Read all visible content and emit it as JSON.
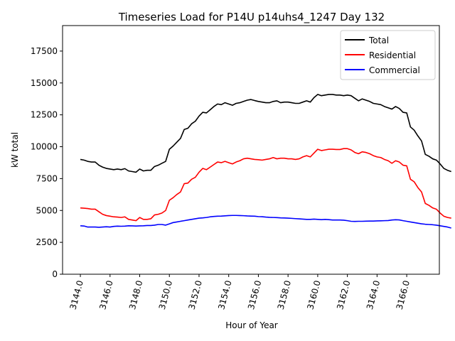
{
  "chart_data": {
    "type": "line",
    "title": "Timeseries Load for P14U p14uhs4_1247  Day 132",
    "xlabel": "Hour of Year",
    "ylabel": "kW total",
    "xlim": [
      3142.8,
      3168.2
    ],
    "ylim": [
      0,
      19500
    ],
    "xticks": [
      3144,
      3146,
      3148,
      3150,
      3152,
      3154,
      3156,
      3158,
      3160,
      3162,
      3164,
      3166
    ],
    "xtick_labels": [
      "3144.0",
      "3146.0",
      "3148.0",
      "3150.0",
      "3152.0",
      "3154.0",
      "3156.0",
      "3158.0",
      "3160.0",
      "3162.0",
      "3164.0",
      "3166.0"
    ],
    "yticks": [
      0,
      2500,
      5000,
      7500,
      10000,
      12500,
      15000,
      17500
    ],
    "ytick_labels": [
      "0",
      "2500",
      "5000",
      "7500",
      "10000",
      "12500",
      "15000",
      "17500"
    ],
    "x_start": 3144,
    "x_step": 0.25,
    "legend_position": "top-right",
    "series": [
      {
        "name": "Total",
        "color": "#000000",
        "values": [
          9000,
          8950,
          8850,
          8800,
          8800,
          8550,
          8400,
          8300,
          8250,
          8200,
          8250,
          8200,
          8280,
          8100,
          8050,
          8000,
          8250,
          8100,
          8150,
          8150,
          8450,
          8550,
          8700,
          8850,
          9800,
          10050,
          10350,
          10650,
          11350,
          11450,
          11800,
          12000,
          12400,
          12700,
          12650,
          12900,
          13150,
          13350,
          13300,
          13450,
          13350,
          13250,
          13400,
          13450,
          13550,
          13650,
          13700,
          13620,
          13550,
          13500,
          13450,
          13450,
          13550,
          13600,
          13450,
          13500,
          13500,
          13450,
          13400,
          13400,
          13500,
          13600,
          13500,
          13850,
          14100,
          14000,
          14050,
          14100,
          14100,
          14050,
          14050,
          14000,
          14050,
          14000,
          13800,
          13600,
          13750,
          13650,
          13550,
          13400,
          13350,
          13300,
          13150,
          13050,
          12950,
          13150,
          13000,
          12700,
          12650,
          11550,
          11300,
          10850,
          10450,
          9400,
          9250,
          9050,
          8950,
          8650,
          8300,
          8150,
          8050
        ]
      },
      {
        "name": "Residential",
        "color": "#ff0000",
        "values": [
          5200,
          5180,
          5150,
          5100,
          5100,
          4900,
          4700,
          4600,
          4550,
          4500,
          4480,
          4450,
          4500,
          4300,
          4250,
          4200,
          4450,
          4300,
          4300,
          4350,
          4650,
          4700,
          4800,
          5000,
          5800,
          6000,
          6250,
          6450,
          7100,
          7150,
          7450,
          7600,
          8000,
          8300,
          8200,
          8400,
          8600,
          8800,
          8750,
          8850,
          8750,
          8650,
          8800,
          8900,
          9050,
          9100,
          9050,
          9000,
          8980,
          8950,
          9000,
          9050,
          9150,
          9050,
          9100,
          9100,
          9050,
          9050,
          9000,
          9050,
          9200,
          9300,
          9200,
          9500,
          9800,
          9700,
          9750,
          9800,
          9800,
          9780,
          9780,
          9850,
          9850,
          9750,
          9550,
          9450,
          9600,
          9550,
          9450,
          9300,
          9200,
          9150,
          9000,
          8900,
          8700,
          8900,
          8800,
          8550,
          8500,
          7450,
          7250,
          6800,
          6450,
          5550,
          5400,
          5200,
          5100,
          4800,
          4550,
          4450,
          4400
        ]
      },
      {
        "name": "Commercial",
        "color": "#0000ff",
        "values": [
          3800,
          3780,
          3700,
          3700,
          3700,
          3680,
          3700,
          3720,
          3700,
          3750,
          3770,
          3760,
          3770,
          3800,
          3790,
          3780,
          3790,
          3800,
          3820,
          3820,
          3850,
          3900,
          3900,
          3850,
          3950,
          4050,
          4100,
          4150,
          4200,
          4250,
          4300,
          4350,
          4400,
          4420,
          4450,
          4500,
          4530,
          4550,
          4560,
          4580,
          4600,
          4610,
          4610,
          4600,
          4590,
          4570,
          4560,
          4550,
          4520,
          4510,
          4480,
          4460,
          4450,
          4440,
          4420,
          4410,
          4400,
          4380,
          4360,
          4340,
          4320,
          4300,
          4300,
          4320,
          4300,
          4280,
          4300,
          4280,
          4250,
          4250,
          4250,
          4240,
          4200,
          4150,
          4140,
          4150,
          4150,
          4160,
          4170,
          4170,
          4180,
          4190,
          4200,
          4210,
          4250,
          4270,
          4260,
          4200,
          4150,
          4100,
          4050,
          4000,
          3950,
          3920,
          3900,
          3880,
          3850,
          3800,
          3750,
          3700,
          3620
        ]
      }
    ]
  }
}
